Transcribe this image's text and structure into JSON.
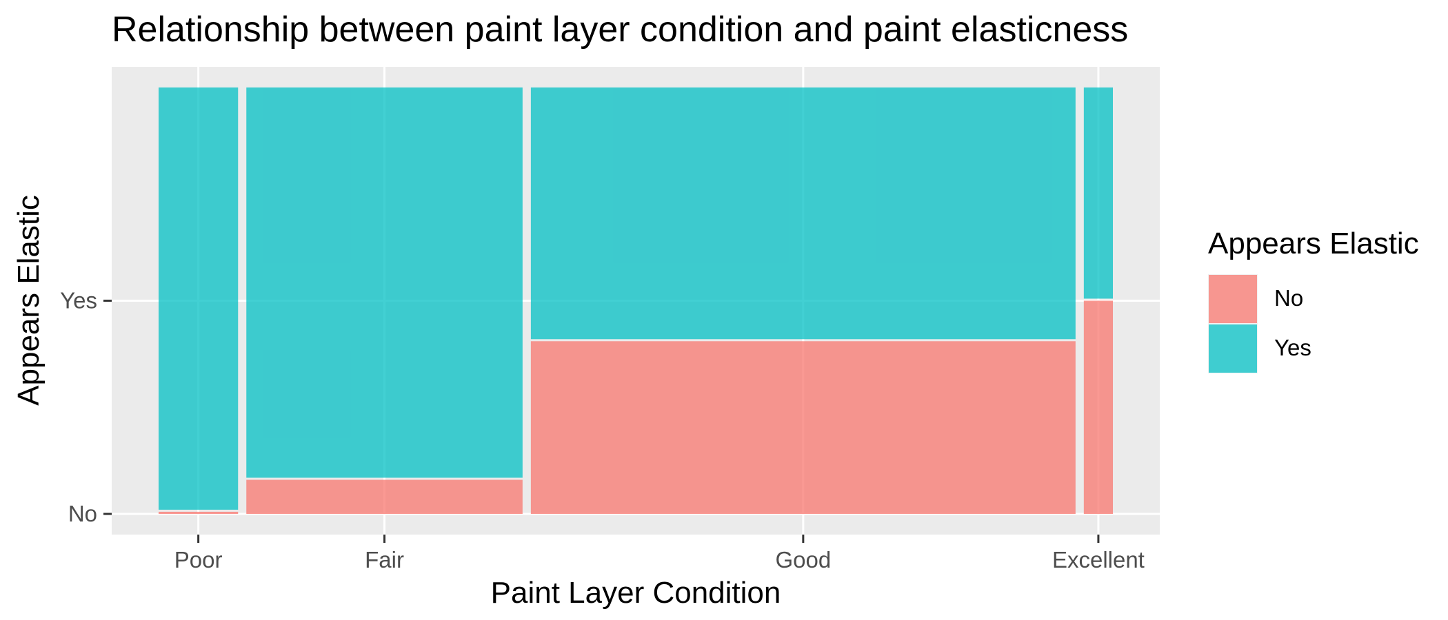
{
  "chart_data": {
    "type": "mosaic",
    "title": "Relationship between paint layer condition and paint elasticness",
    "xlabel": "Paint Layer Condition",
    "ylabel": "Appears Elastic",
    "categories": [
      "Poor",
      "Fair",
      "Good",
      "Excellent"
    ],
    "column_widths": [
      0.082,
      0.285,
      0.562,
      0.03
    ],
    "y_levels": [
      "No",
      "Yes"
    ],
    "series": [
      {
        "name": "No",
        "color": "#F8766D",
        "values": [
          0.005,
          0.08,
          0.405,
          0.5
        ]
      },
      {
        "name": "Yes",
        "color": "#00BFC4",
        "values": [
          0.995,
          0.92,
          0.595,
          0.5
        ]
      }
    ],
    "legend": {
      "title": "Appears Elastic",
      "position": "right",
      "entries": [
        "No",
        "Yes"
      ]
    },
    "grid": true
  }
}
